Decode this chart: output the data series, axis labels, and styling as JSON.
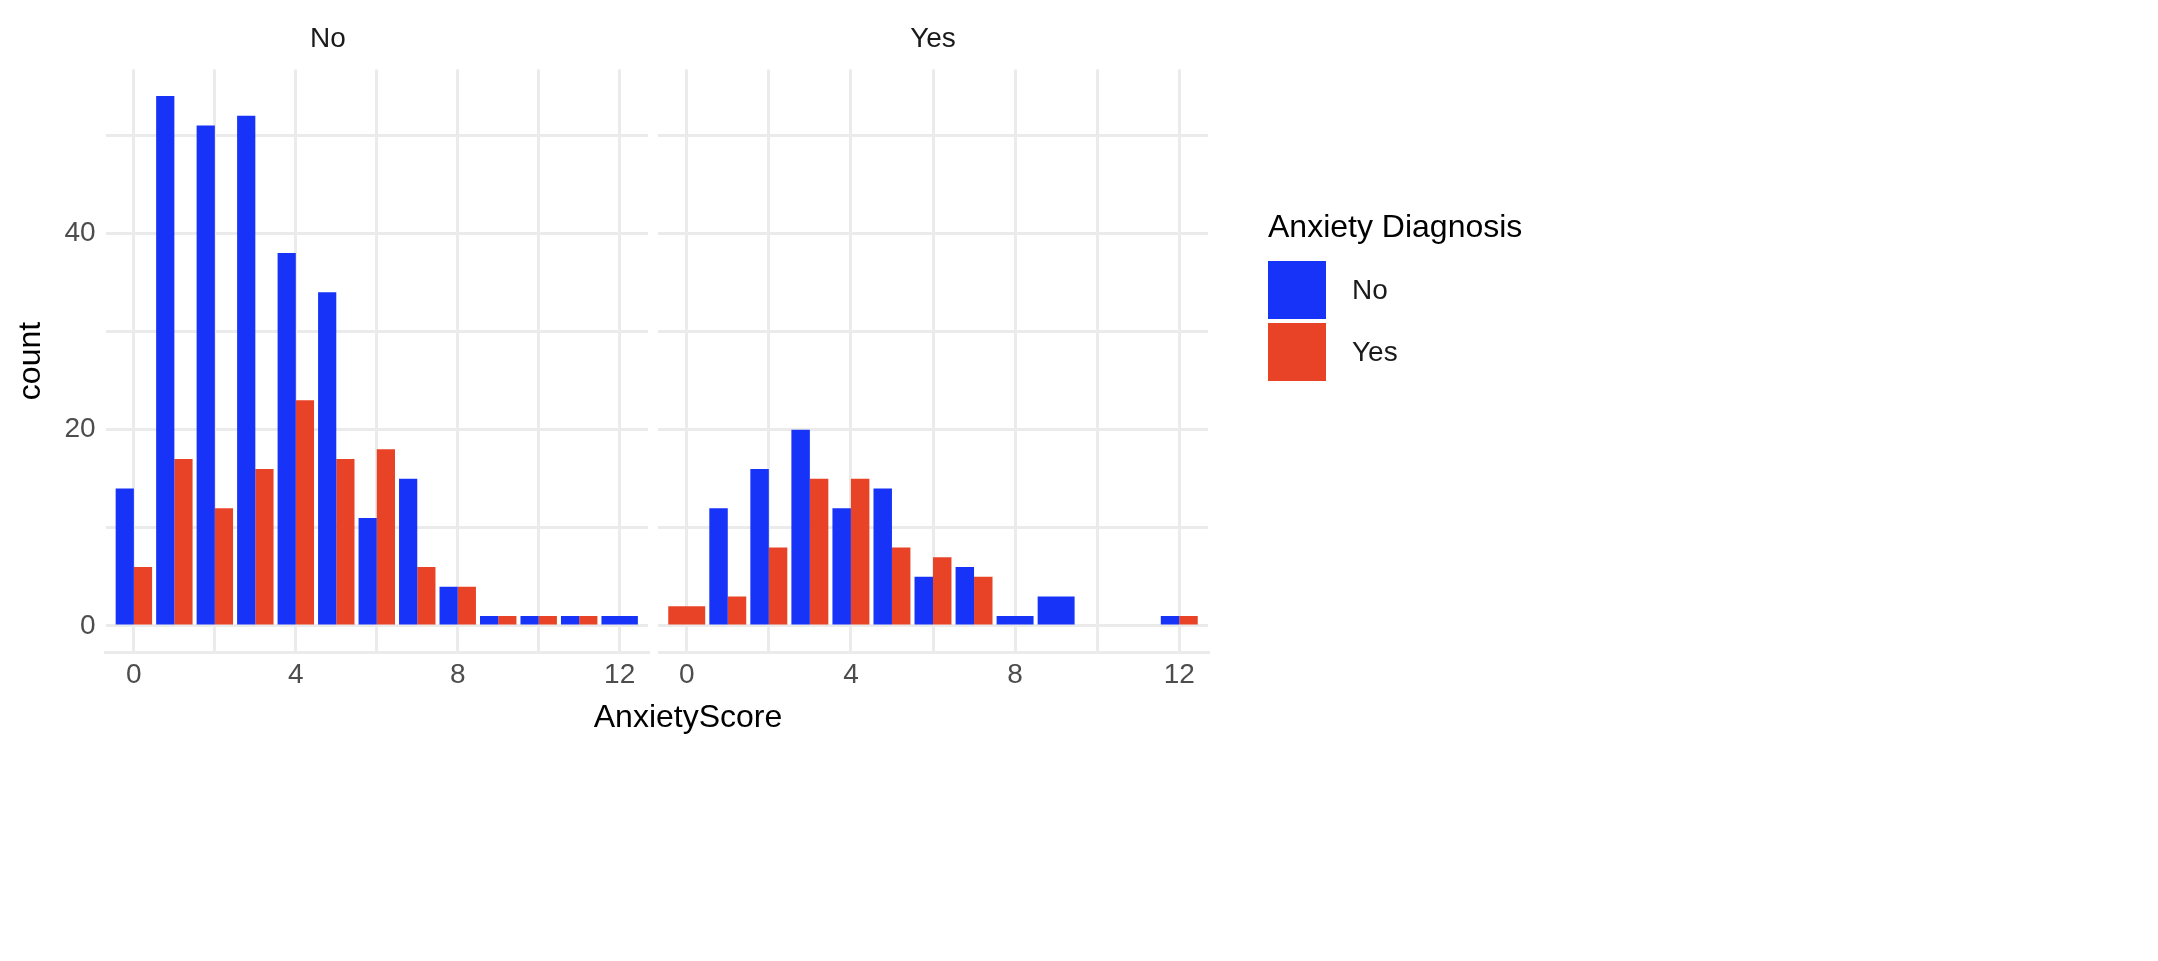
{
  "chart_data": [
    {
      "type": "bar",
      "title": "No",
      "ylabel": "count",
      "xlabel": "AnxietyScore",
      "x": [
        0,
        1,
        2,
        3,
        4,
        5,
        6,
        7,
        8,
        9,
        10,
        11,
        12
      ],
      "xlim": [
        -0.7,
        12.7
      ],
      "xticks": [
        0,
        {
          "value": 2,
          "label": null
        },
        4,
        {
          "value": 6,
          "label": null
        },
        8,
        {
          "value": 10,
          "label": null
        },
        12
      ],
      "ylim": [
        -2.7,
        56.7
      ],
      "yticks": [
        0,
        {
          "value": 10,
          "label": null
        },
        20,
        {
          "value": 30,
          "label": null
        },
        40,
        {
          "value": 50,
          "label": null
        }
      ],
      "grid": true,
      "legend": false,
      "series": [
        {
          "color": "#1733f7",
          "values": [
            14,
            54,
            51,
            52,
            38,
            34,
            11,
            15,
            4,
            1,
            1,
            1,
            1
          ]
        },
        {
          "color": "#e84326",
          "values": [
            6,
            17,
            12,
            16,
            23,
            17,
            18,
            6,
            4,
            1,
            1,
            1,
            null
          ]
        }
      ]
    },
    {
      "type": "bar",
      "title": "Yes",
      "x": [
        0,
        1,
        2,
        3,
        4,
        5,
        6,
        7,
        8,
        9,
        10,
        11,
        12
      ],
      "xlim": [
        -0.7,
        12.7
      ],
      "xticks": [
        0,
        {
          "value": 2,
          "label": null
        },
        4,
        {
          "value": 6,
          "label": null
        },
        8,
        {
          "value": 10,
          "label": null
        },
        12
      ],
      "ylim": [
        -2.7,
        56.7
      ],
      "yticks": [
        0,
        {
          "value": 10,
          "label": null
        },
        20,
        {
          "value": 30,
          "label": null
        },
        40,
        {
          "value": 50,
          "label": null
        }
      ],
      "grid": true,
      "tick_labels": "x",
      "legend": "right",
      "legend_title": "Anxiety Diagnosis",
      "series": [
        {
          "name": "No",
          "color": "#1733f7",
          "values": [
            null,
            12,
            16,
            20,
            12,
            14,
            5,
            6,
            1,
            3,
            null,
            null,
            1
          ]
        },
        {
          "name": "Yes",
          "color": "#e84326",
          "values": [
            2,
            3,
            8,
            15,
            15,
            8,
            7,
            5,
            null,
            null,
            null,
            null,
            1
          ]
        }
      ]
    }
  ]
}
